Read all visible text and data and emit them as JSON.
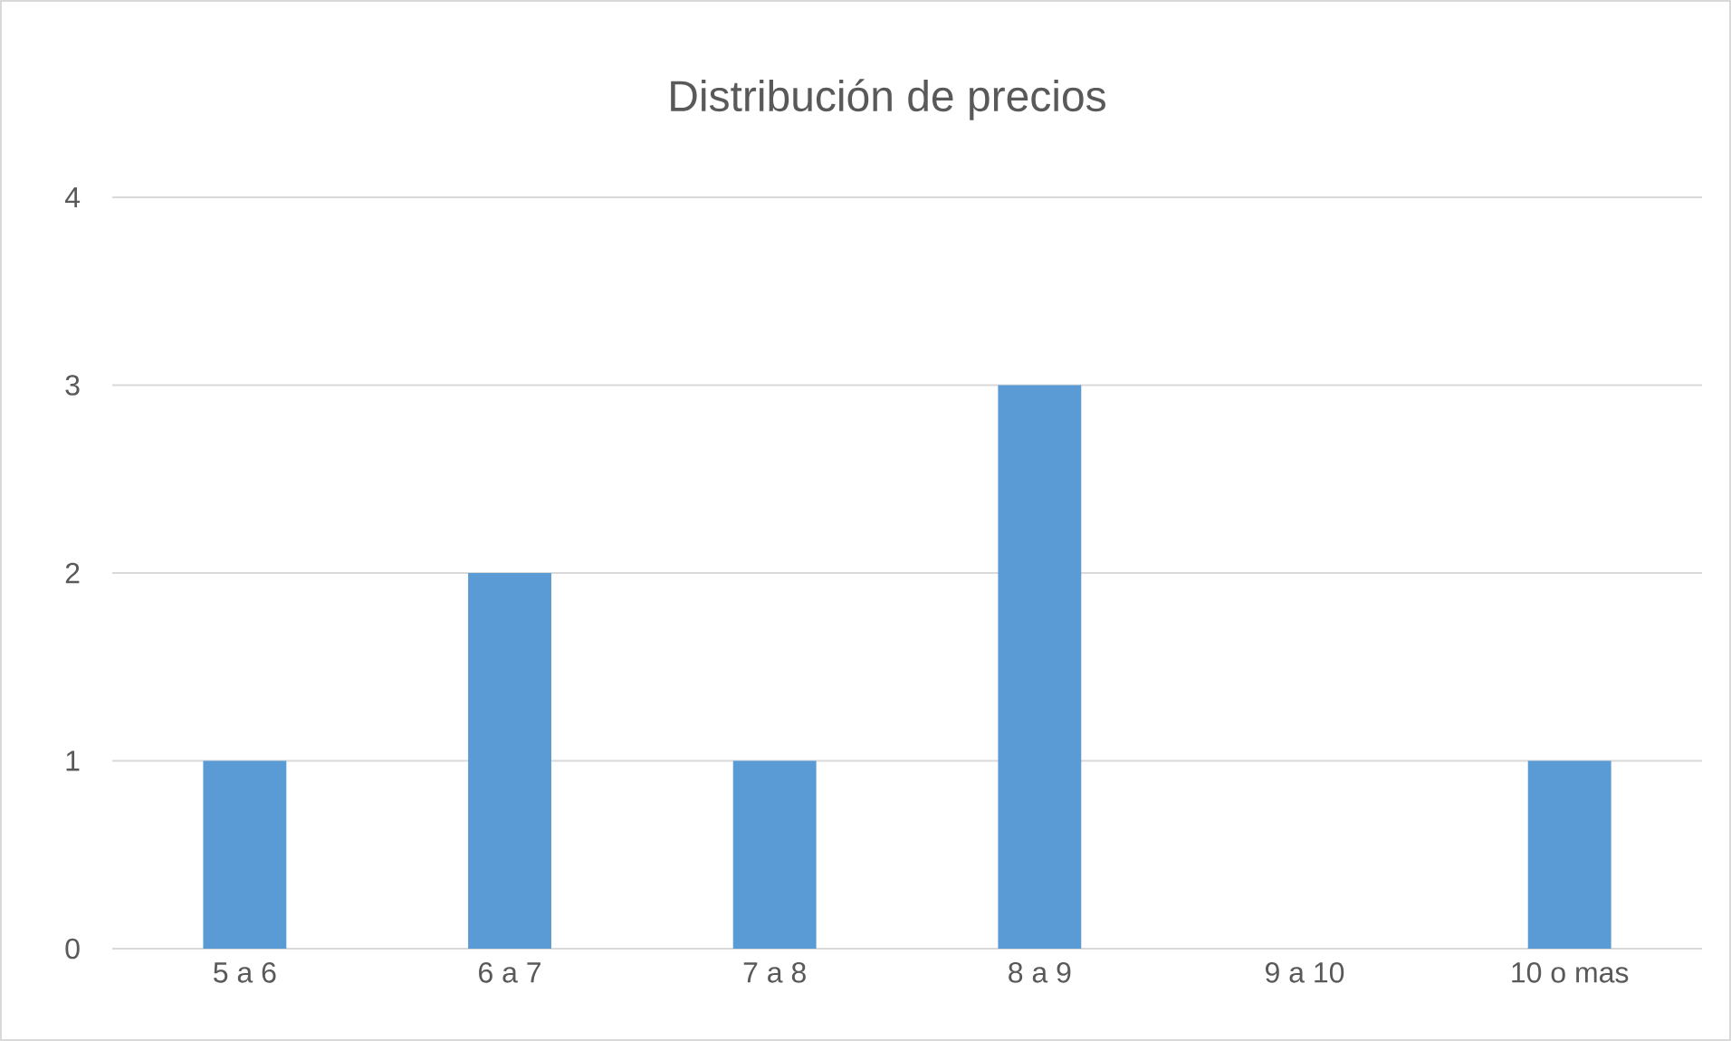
{
  "chart_data": {
    "type": "bar",
    "title": "Distribución de precios",
    "categories": [
      "5 a 6",
      "6 a 7",
      "7 a 8",
      "8 a 9",
      "9 a 10",
      "10 o mas"
    ],
    "values": [
      1,
      2,
      1,
      3,
      0,
      1
    ],
    "color": "#5b9bd5",
    "ylim": [
      0,
      4
    ],
    "yticks": [
      0,
      1,
      2,
      3,
      4
    ],
    "grid": "y"
  }
}
